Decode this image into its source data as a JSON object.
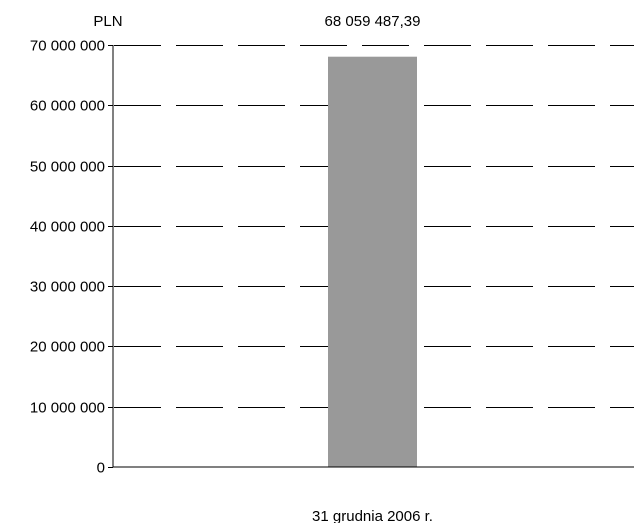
{
  "chart_data": {
    "type": "bar",
    "ylabel": "PLN",
    "categories": [
      "31 grudnia 2006 r."
    ],
    "values": [
      68059487.39
    ],
    "value_labels": [
      "68 059 487,39"
    ],
    "ylim": [
      0,
      70000000
    ],
    "y_ticks": [
      {
        "value": 0,
        "label": "0"
      },
      {
        "value": 10000000,
        "label": "10 000 000"
      },
      {
        "value": 20000000,
        "label": "20 000 000"
      },
      {
        "value": 30000000,
        "label": "30 000 000"
      },
      {
        "value": 40000000,
        "label": "40 000 000"
      },
      {
        "value": 50000000,
        "label": "50 000 000"
      },
      {
        "value": 60000000,
        "label": "60 000 000"
      },
      {
        "value": 70000000,
        "label": "70 000 000"
      }
    ],
    "grid": "dashed",
    "bar_color": "#999999",
    "grid_color": "#000000"
  }
}
